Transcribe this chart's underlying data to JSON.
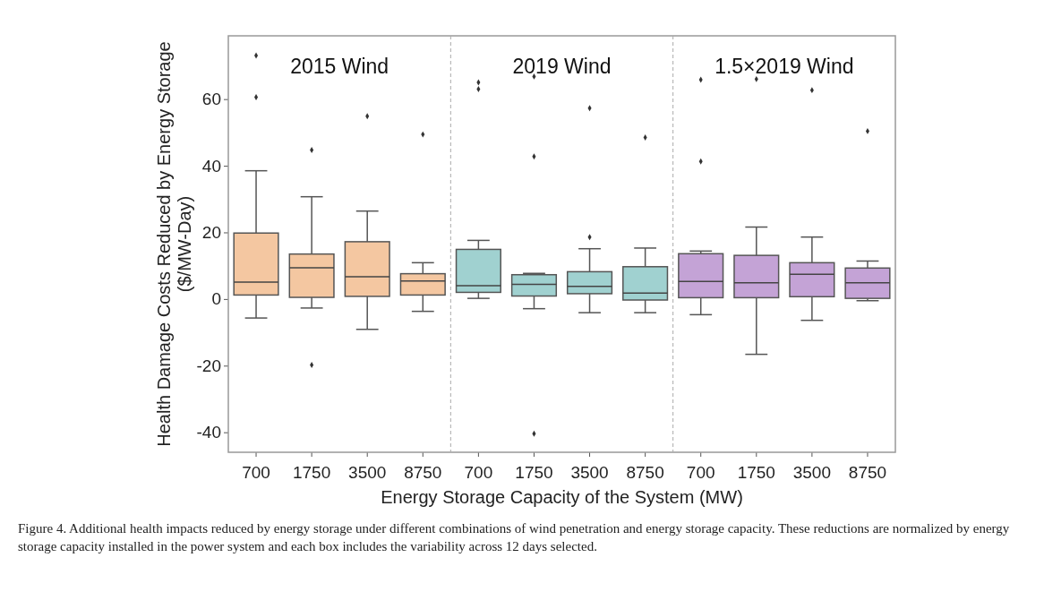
{
  "chart_data": {
    "type": "box",
    "xlabel": "Energy Storage Capacity of the System (MW)",
    "ylabel": "Health Damage Costs Reduced by Energy Storage\n($/MW-Day)",
    "categories": [
      "700",
      "1750",
      "3500",
      "8750",
      "700",
      "1750",
      "3500",
      "8750",
      "700",
      "1750",
      "3500",
      "8750"
    ],
    "colors": [
      "#f4c7a1",
      "#f4c7a1",
      "#f4c7a1",
      "#f4c7a1",
      "#a0d1d0",
      "#a0d1d0",
      "#a0d1d0",
      "#a0d1d0",
      "#c4a3d6",
      "#c4a3d6",
      "#c4a3d6",
      "#c4a3d6"
    ],
    "boxes": [
      {
        "low": -5.7,
        "q1": 1.2,
        "median": 5.1,
        "q3": 19.8,
        "high": 38.5,
        "outliers": [
          73.1,
          60.6
        ]
      },
      {
        "low": -2.7,
        "q1": 0.5,
        "median": 9.4,
        "q3": 13.5,
        "high": 30.7,
        "outliers": [
          44.7,
          -19.8
        ]
      },
      {
        "low": -9.1,
        "q1": 0.8,
        "median": 6.7,
        "q3": 17.2,
        "high": 26.4,
        "outliers": [
          54.9
        ]
      },
      {
        "low": -3.7,
        "q1": 1.2,
        "median": 5.4,
        "q3": 7.6,
        "high": 10.9,
        "outliers": [
          49.4
        ]
      },
      {
        "low": 0.2,
        "q1": 2.0,
        "median": 4.0,
        "q3": 14.9,
        "high": 17.6,
        "outliers": [
          65.0,
          63.0
        ]
      },
      {
        "low": -2.9,
        "q1": 0.9,
        "median": 4.4,
        "q3": 7.3,
        "high": 7.7,
        "outliers": [
          66.8,
          42.8,
          -40.4
        ]
      },
      {
        "low": -4.1,
        "q1": 1.6,
        "median": 3.8,
        "q3": 8.2,
        "high": 15.1,
        "outliers": [
          57.3,
          18.6
        ]
      },
      {
        "low": -4.1,
        "q1": -0.3,
        "median": 1.8,
        "q3": 9.7,
        "high": 15.3,
        "outliers": [
          48.5
        ]
      },
      {
        "low": -4.7,
        "q1": 0.4,
        "median": 5.3,
        "q3": 13.6,
        "high": 14.4,
        "outliers": [
          65.8,
          41.3
        ]
      },
      {
        "low": -16.6,
        "q1": 0.4,
        "median": 4.9,
        "q3": 13.1,
        "high": 21.6,
        "outliers": [
          66.0
        ]
      },
      {
        "low": -6.4,
        "q1": 0.7,
        "median": 7.4,
        "q3": 10.9,
        "high": 18.6,
        "outliers": [
          62.7
        ]
      },
      {
        "low": -0.5,
        "q1": 0.2,
        "median": 4.9,
        "q3": 9.3,
        "high": 11.4,
        "outliers": [
          50.4
        ]
      }
    ],
    "ylim": [
      -46,
      79
    ],
    "yticks": [
      -40,
      -20,
      0,
      20,
      40,
      60
    ],
    "grid": false,
    "annotations": [
      "2015 Wind",
      "2019 Wind",
      "1.5×2019 Wind",
      "Figure 4.  Additional health impacts reduced by energy storage under different combinations of wind penetration and energy storage capacity. These reductions are normalized by energy storage capacity installed in the power system and each box includes the variability across 12 days selected."
    ]
  }
}
